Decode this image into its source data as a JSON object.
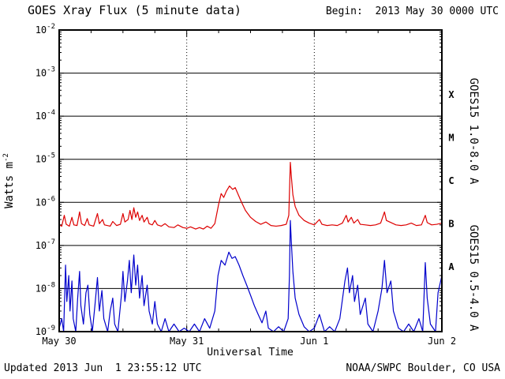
{
  "title": "GOES Xray Flux (5 minute data)",
  "begin_label": "Begin:  2013 May 30 0000 UTC",
  "labels": {
    "ylabel_base": "Watts m",
    "ylabel_sup": "-2",
    "xlabel": "Universal Time"
  },
  "right_labels": {
    "long": "GOES15 1.0-8.0 A",
    "short": "GOES15 0.5-4.0 A"
  },
  "footer": {
    "updated": "Updated 2013 Jun  1 23:55:12 UTC",
    "credit": "NOAA/SWPC Boulder, CO USA"
  },
  "colors": {
    "long_series": "#dd0000",
    "short_series": "#0000cc",
    "axis": "#000000",
    "background": "#ffffff"
  },
  "chart_data": {
    "type": "line",
    "title": "GOES Xray Flux (5 minute data)",
    "xlabel": "Universal Time",
    "ylabel": "Watts m^-2",
    "x_unit": "days since 2013-05-30 00:00 UTC",
    "xlim": [
      0,
      3
    ],
    "ylog": true,
    "ylim_exponents": [
      -9,
      -2
    ],
    "grid": "horizontal-solid, day-boundaries-dotted",
    "x_ticks": [
      {
        "value": 0,
        "label": "May 30"
      },
      {
        "value": 1,
        "label": "May 31"
      },
      {
        "value": 2,
        "label": "Jun 1"
      },
      {
        "value": 3,
        "label": "Jun 2"
      }
    ],
    "y_tick_exponents": [
      -2,
      -3,
      -4,
      -5,
      -6,
      -7,
      -8,
      -9
    ],
    "flare_classes": [
      {
        "label": "X",
        "log_center": -3.5
      },
      {
        "label": "M",
        "log_center": -4.5
      },
      {
        "label": "C",
        "log_center": -5.5
      },
      {
        "label": "B",
        "log_center": -6.5
      },
      {
        "label": "A",
        "log_center": -7.5
      }
    ],
    "series": [
      {
        "name": "GOES15 1.0-8.0 A",
        "color": "#dd0000",
        "points": [
          [
            0.0,
            3e-07
          ],
          [
            0.02,
            2.8e-07
          ],
          [
            0.04,
            5e-07
          ],
          [
            0.055,
            3.1e-07
          ],
          [
            0.08,
            2.8e-07
          ],
          [
            0.1,
            4.5e-07
          ],
          [
            0.115,
            3e-07
          ],
          [
            0.14,
            2.9e-07
          ],
          [
            0.16,
            6e-07
          ],
          [
            0.175,
            3.2e-07
          ],
          [
            0.2,
            2.9e-07
          ],
          [
            0.22,
            4.2e-07
          ],
          [
            0.235,
            3e-07
          ],
          [
            0.27,
            2.8e-07
          ],
          [
            0.3,
            5.5e-07
          ],
          [
            0.315,
            3.2e-07
          ],
          [
            0.34,
            4e-07
          ],
          [
            0.355,
            3e-07
          ],
          [
            0.4,
            2.8e-07
          ],
          [
            0.42,
            3.6e-07
          ],
          [
            0.45,
            2.9e-07
          ],
          [
            0.48,
            3.1e-07
          ],
          [
            0.5,
            5.5e-07
          ],
          [
            0.515,
            3.5e-07
          ],
          [
            0.54,
            4e-07
          ],
          [
            0.555,
            6.5e-07
          ],
          [
            0.57,
            4e-07
          ],
          [
            0.585,
            7.5e-07
          ],
          [
            0.6,
            4.5e-07
          ],
          [
            0.615,
            6e-07
          ],
          [
            0.63,
            3.8e-07
          ],
          [
            0.65,
            5e-07
          ],
          [
            0.665,
            3.5e-07
          ],
          [
            0.69,
            4.5e-07
          ],
          [
            0.705,
            3.2e-07
          ],
          [
            0.73,
            3e-07
          ],
          [
            0.75,
            3.8e-07
          ],
          [
            0.77,
            3e-07
          ],
          [
            0.8,
            2.8e-07
          ],
          [
            0.83,
            3.2e-07
          ],
          [
            0.86,
            2.7e-07
          ],
          [
            0.9,
            2.6e-07
          ],
          [
            0.93,
            3e-07
          ],
          [
            0.97,
            2.6e-07
          ],
          [
            1.0,
            2.5e-07
          ],
          [
            1.03,
            2.7e-07
          ],
          [
            1.07,
            2.4e-07
          ],
          [
            1.1,
            2.6e-07
          ],
          [
            1.13,
            2.4e-07
          ],
          [
            1.16,
            2.8e-07
          ],
          [
            1.19,
            2.5e-07
          ],
          [
            1.22,
            3.2e-07
          ],
          [
            1.25,
            9e-07
          ],
          [
            1.27,
            1.6e-06
          ],
          [
            1.29,
            1.3e-06
          ],
          [
            1.31,
            1.8e-06
          ],
          [
            1.335,
            2.4e-06
          ],
          [
            1.36,
            2e-06
          ],
          [
            1.38,
            2.2e-06
          ],
          [
            1.4,
            1.6e-06
          ],
          [
            1.43,
            1e-06
          ],
          [
            1.46,
            6.5e-07
          ],
          [
            1.5,
            4.5e-07
          ],
          [
            1.54,
            3.6e-07
          ],
          [
            1.58,
            3.1e-07
          ],
          [
            1.62,
            3.5e-07
          ],
          [
            1.66,
            2.9e-07
          ],
          [
            1.7,
            2.8e-07
          ],
          [
            1.74,
            2.9e-07
          ],
          [
            1.78,
            3.1e-07
          ],
          [
            1.8,
            5e-07
          ],
          [
            1.812,
            8.5e-06
          ],
          [
            1.82,
            4e-06
          ],
          [
            1.832,
            1.5e-06
          ],
          [
            1.85,
            8e-07
          ],
          [
            1.88,
            5e-07
          ],
          [
            1.92,
            3.8e-07
          ],
          [
            1.96,
            3.3e-07
          ],
          [
            2.0,
            3e-07
          ],
          [
            2.04,
            4e-07
          ],
          [
            2.06,
            3.1e-07
          ],
          [
            2.1,
            2.9e-07
          ],
          [
            2.14,
            3e-07
          ],
          [
            2.18,
            2.9e-07
          ],
          [
            2.22,
            3.3e-07
          ],
          [
            2.25,
            5e-07
          ],
          [
            2.265,
            3.5e-07
          ],
          [
            2.29,
            4.5e-07
          ],
          [
            2.31,
            3.3e-07
          ],
          [
            2.34,
            4e-07
          ],
          [
            2.36,
            3.1e-07
          ],
          [
            2.4,
            3e-07
          ],
          [
            2.44,
            2.9e-07
          ],
          [
            2.48,
            3e-07
          ],
          [
            2.52,
            3.3e-07
          ],
          [
            2.55,
            6e-07
          ],
          [
            2.565,
            3.8e-07
          ],
          [
            2.6,
            3.4e-07
          ],
          [
            2.64,
            3e-07
          ],
          [
            2.68,
            2.9e-07
          ],
          [
            2.72,
            3e-07
          ],
          [
            2.76,
            3.3e-07
          ],
          [
            2.8,
            2.9e-07
          ],
          [
            2.84,
            3e-07
          ],
          [
            2.87,
            5e-07
          ],
          [
            2.885,
            3.4e-07
          ],
          [
            2.92,
            3e-07
          ],
          [
            2.96,
            3.1e-07
          ],
          [
            3.0,
            3.3e-07
          ]
        ]
      },
      {
        "name": "GOES15 0.5-4.0 A",
        "color": "#0000cc",
        "points": [
          [
            0.0,
            1.2e-09
          ],
          [
            0.02,
            2e-09
          ],
          [
            0.035,
            1e-09
          ],
          [
            0.05,
            3.5e-08
          ],
          [
            0.06,
            5e-09
          ],
          [
            0.075,
            2e-08
          ],
          [
            0.085,
            3e-09
          ],
          [
            0.1,
            1.5e-08
          ],
          [
            0.11,
            2e-09
          ],
          [
            0.13,
            1e-09
          ],
          [
            0.145,
            6e-09
          ],
          [
            0.16,
            2.5e-08
          ],
          [
            0.17,
            4e-09
          ],
          [
            0.19,
            1.5e-09
          ],
          [
            0.21,
            8e-09
          ],
          [
            0.225,
            1.2e-08
          ],
          [
            0.24,
            2.5e-09
          ],
          [
            0.26,
            1e-09
          ],
          [
            0.28,
            4e-09
          ],
          [
            0.3,
            1.8e-08
          ],
          [
            0.315,
            3e-09
          ],
          [
            0.335,
            9e-09
          ],
          [
            0.35,
            2e-09
          ],
          [
            0.38,
            1e-09
          ],
          [
            0.4,
            3e-09
          ],
          [
            0.42,
            6e-09
          ],
          [
            0.435,
            1.5e-09
          ],
          [
            0.46,
            1e-09
          ],
          [
            0.49,
            8e-09
          ],
          [
            0.5,
            2.5e-08
          ],
          [
            0.515,
            5e-09
          ],
          [
            0.535,
            1.5e-08
          ],
          [
            0.55,
            4.5e-08
          ],
          [
            0.565,
            8e-09
          ],
          [
            0.585,
            6e-08
          ],
          [
            0.6,
            1.2e-08
          ],
          [
            0.615,
            3.5e-08
          ],
          [
            0.63,
            6e-09
          ],
          [
            0.65,
            2e-08
          ],
          [
            0.665,
            4e-09
          ],
          [
            0.69,
            1.2e-08
          ],
          [
            0.705,
            3e-09
          ],
          [
            0.73,
            1.5e-09
          ],
          [
            0.75,
            5e-09
          ],
          [
            0.77,
            1.5e-09
          ],
          [
            0.8,
            1e-09
          ],
          [
            0.83,
            2e-09
          ],
          [
            0.86,
            1e-09
          ],
          [
            0.9,
            1.5e-09
          ],
          [
            0.94,
            1e-09
          ],
          [
            0.98,
            1.2e-09
          ],
          [
            1.02,
            1e-09
          ],
          [
            1.06,
            1.5e-09
          ],
          [
            1.1,
            1e-09
          ],
          [
            1.14,
            2e-09
          ],
          [
            1.18,
            1.2e-09
          ],
          [
            1.22,
            3e-09
          ],
          [
            1.245,
            2e-08
          ],
          [
            1.27,
            4.5e-08
          ],
          [
            1.3,
            3.5e-08
          ],
          [
            1.33,
            7e-08
          ],
          [
            1.355,
            5e-08
          ],
          [
            1.38,
            5.5e-08
          ],
          [
            1.41,
            3.5e-08
          ],
          [
            1.44,
            2e-08
          ],
          [
            1.47,
            1.2e-08
          ],
          [
            1.5,
            7e-09
          ],
          [
            1.53,
            4e-09
          ],
          [
            1.56,
            2.5e-09
          ],
          [
            1.59,
            1.6e-09
          ],
          [
            1.62,
            3e-09
          ],
          [
            1.64,
            1.2e-09
          ],
          [
            1.68,
            1e-09
          ],
          [
            1.72,
            1.3e-09
          ],
          [
            1.76,
            1e-09
          ],
          [
            1.795,
            2e-09
          ],
          [
            1.805,
            2e-08
          ],
          [
            1.812,
            3.8e-07
          ],
          [
            1.82,
            1.2e-07
          ],
          [
            1.832,
            2.5e-08
          ],
          [
            1.85,
            6e-09
          ],
          [
            1.88,
            2.5e-09
          ],
          [
            1.92,
            1.3e-09
          ],
          [
            1.96,
            1e-09
          ],
          [
            2.0,
            1.2e-09
          ],
          [
            2.04,
            2.5e-09
          ],
          [
            2.08,
            1e-09
          ],
          [
            2.12,
            1.3e-09
          ],
          [
            2.16,
            1e-09
          ],
          [
            2.2,
            2e-09
          ],
          [
            2.24,
            1.5e-08
          ],
          [
            2.26,
            3e-08
          ],
          [
            2.275,
            8e-09
          ],
          [
            2.3,
            2e-08
          ],
          [
            2.315,
            5e-09
          ],
          [
            2.34,
            1.2e-08
          ],
          [
            2.36,
            2.5e-09
          ],
          [
            2.4,
            6e-09
          ],
          [
            2.42,
            1.5e-09
          ],
          [
            2.46,
            1e-09
          ],
          [
            2.5,
            3e-09
          ],
          [
            2.53,
            1e-08
          ],
          [
            2.55,
            4.5e-08
          ],
          [
            2.57,
            8e-09
          ],
          [
            2.6,
            1.5e-08
          ],
          [
            2.62,
            3e-09
          ],
          [
            2.66,
            1.2e-09
          ],
          [
            2.7,
            1e-09
          ],
          [
            2.74,
            1.5e-09
          ],
          [
            2.78,
            1e-09
          ],
          [
            2.82,
            2e-09
          ],
          [
            2.85,
            1e-09
          ],
          [
            2.87,
            4e-08
          ],
          [
            2.885,
            6e-09
          ],
          [
            2.91,
            1.5e-09
          ],
          [
            2.95,
            1e-09
          ],
          [
            2.97,
            8e-09
          ],
          [
            3.0,
            2e-08
          ]
        ]
      }
    ]
  }
}
